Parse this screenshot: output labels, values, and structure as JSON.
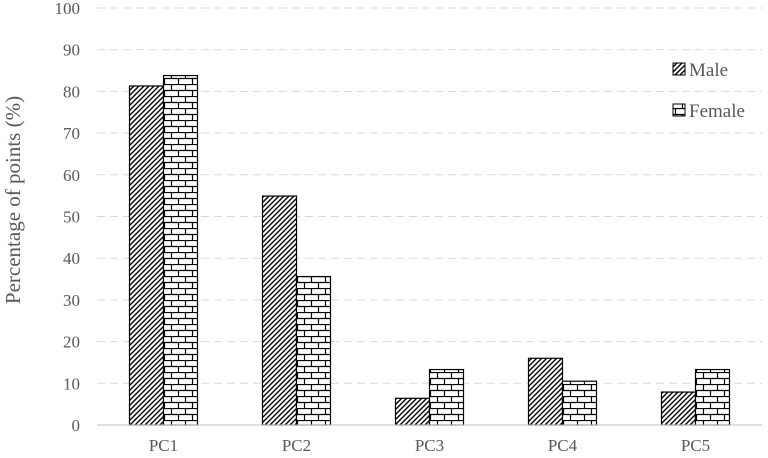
{
  "chart_data": {
    "type": "bar",
    "categories": [
      "PC1",
      "PC2",
      "PC3",
      "PC4",
      "PC5"
    ],
    "series": [
      {
        "name": "Male",
        "values": [
          81.3,
          54.9,
          6.4,
          16.0,
          7.9
        ]
      },
      {
        "name": "Female",
        "values": [
          83.8,
          35.6,
          13.3,
          10.5,
          13.3
        ]
      }
    ],
    "title": "",
    "xlabel": "",
    "ylabel": "Percentage of points (%)",
    "ylim": [
      0,
      100
    ],
    "yticks": [
      "0",
      "10",
      "20",
      "30",
      "40",
      "50",
      "60",
      "70",
      "80",
      "90",
      "100"
    ],
    "grid": "horizontal dashed",
    "legend_position": "top-right",
    "patterns": {
      "Male": "diagonal-hatch",
      "Female": "brick"
    }
  }
}
